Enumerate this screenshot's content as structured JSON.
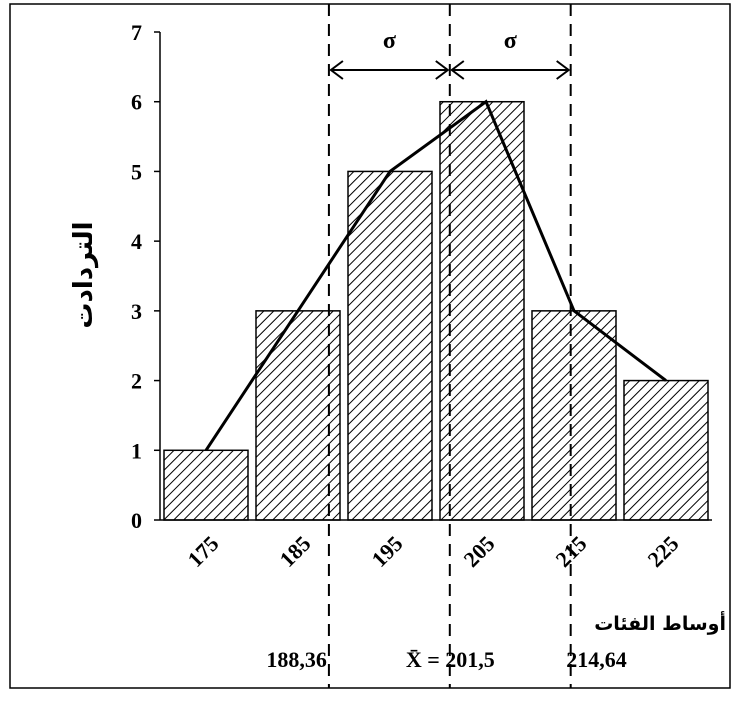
{
  "chart_data": {
    "type": "bar",
    "categories": [
      "175",
      "185",
      "195",
      "205",
      "215",
      "225"
    ],
    "values": [
      1,
      3,
      5,
      6,
      3,
      2
    ],
    "polygon_y": [
      1,
      3,
      5,
      6,
      3,
      2
    ],
    "ylabel": "التردادت",
    "xlabel": "أوساط الفئات",
    "ylim": [
      0,
      7
    ],
    "yticks": [
      0,
      1,
      2,
      3,
      4,
      5,
      6,
      7
    ],
    "bar_fill": "hatched",
    "bar_color": "#000000",
    "annotations": {
      "sigma_symbol": "σ",
      "sigma_lines_x": [
        188.36,
        201.5,
        214.64
      ],
      "labels": [
        {
          "x": 188.36,
          "text": "188,36"
        },
        {
          "x": 201.5,
          "text": "201,5",
          "prefix": "X̄ ="
        },
        {
          "x": 214.64,
          "text": "214,64"
        }
      ]
    }
  }
}
